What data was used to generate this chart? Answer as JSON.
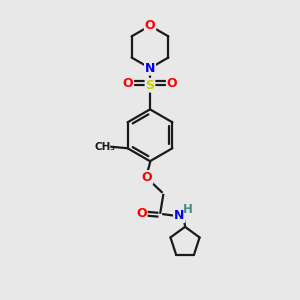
{
  "bg_color": "#e8e8e8",
  "bond_color": "#1a1a1a",
  "atom_colors": {
    "O": "#ff0000",
    "N": "#0000ff",
    "S": "#cccc00",
    "H": "#4a8a8a",
    "C": "#1a1a1a"
  }
}
